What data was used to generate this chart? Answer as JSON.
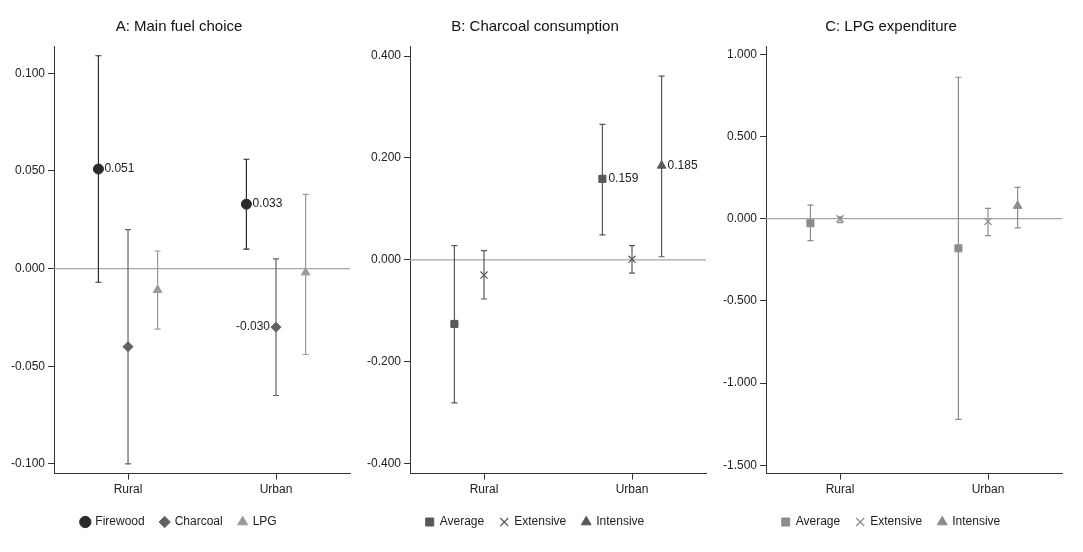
{
  "chart_data": [
    {
      "type": "scatter",
      "title": "A: Main fuel choice",
      "categories": [
        "Rural",
        "Urban"
      ],
      "ylim": [
        -0.105,
        0.114
      ],
      "yticks": [
        {
          "value": 0.1,
          "label": "0.100"
        },
        {
          "value": 0.05,
          "label": "0.050"
        },
        {
          "value": 0,
          "label": "0.000"
        },
        {
          "value": -0.05,
          "label": "-0.050"
        },
        {
          "value": -0.1,
          "label": "-0.100"
        }
      ],
      "legend": "bottom",
      "ref_lines": [
        {
          "axis": "y",
          "value": 0,
          "color": "#a6a6a6"
        }
      ],
      "series": [
        {
          "name": "Firewood",
          "color": "#2b2b2b",
          "marker": "circle",
          "values": [
            0.051,
            0.033
          ],
          "errors": [
            [
              -0.007,
              0.109
            ],
            [
              0.01,
              0.056
            ]
          ],
          "value_labels": [
            "0.051",
            "0.033"
          ]
        },
        {
          "name": "Charcoal",
          "color": "#626262",
          "marker": "diamond",
          "values": [
            -0.04,
            -0.03
          ],
          "errors": [
            [
              -0.1,
              0.02
            ],
            [
              -0.065,
              0.005
            ]
          ],
          "value_labels": [
            null,
            "-0.030"
          ]
        },
        {
          "name": "LPG",
          "color": "#9a9a9a",
          "marker": "triangle",
          "values": [
            -0.011,
            -0.002
          ],
          "errors": [
            [
              -0.031,
              0.009
            ],
            [
              -0.044,
              0.038
            ]
          ]
        }
      ]
    },
    {
      "type": "scatter",
      "title": "B: Charcoal consumption",
      "categories": [
        "Rural",
        "Urban"
      ],
      "ylim": [
        -0.42,
        0.42
      ],
      "yticks": [
        {
          "value": 0.4,
          "label": "0.400"
        },
        {
          "value": 0.2,
          "label": "0.200"
        },
        {
          "value": 0,
          "label": "0.000"
        },
        {
          "value": -0.2,
          "label": "-0.200"
        },
        {
          "value": -0.4,
          "label": "-0.400"
        }
      ],
      "legend": "bottom",
      "ref_lines": [
        {
          "axis": "y",
          "value": 0,
          "color": "#a6a6a6"
        }
      ],
      "series": [
        {
          "name": "Average",
          "color": "#595959",
          "marker": "square",
          "values": [
            -0.126,
            0.159
          ],
          "errors": [
            [
              -0.281,
              0.028
            ],
            [
              0.049,
              0.266
            ]
          ],
          "value_labels": [
            null,
            "0.159"
          ]
        },
        {
          "name": "Extensive",
          "color": "#595959",
          "marker": "cross",
          "values": [
            -0.03,
            0.001
          ],
          "errors": [
            [
              -0.077,
              0.018
            ],
            [
              -0.026,
              0.028
            ]
          ]
        },
        {
          "name": "Intensive",
          "color": "#595959",
          "marker": "triangle",
          "values": [
            null,
            0.185
          ],
          "errors": [
            null,
            [
              0.006,
              0.361
            ]
          ],
          "value_labels": [
            null,
            "0.185"
          ]
        }
      ]
    },
    {
      "type": "scatter",
      "title": "C: LPG expenditure",
      "categories": [
        "Rural",
        "Urban"
      ],
      "ylim": [
        -1.55,
        1.05
      ],
      "yticks": [
        {
          "value": 1,
          "label": "1.000"
        },
        {
          "value": 0.5,
          "label": "0.500"
        },
        {
          "value": 0,
          "label": "0.000"
        },
        {
          "value": -0.5,
          "label": "-0.500"
        },
        {
          "value": -1,
          "label": "-1.000"
        },
        {
          "value": -1.5,
          "label": "-1.500"
        }
      ],
      "legend": "bottom",
      "ref_lines": [
        {
          "axis": "y",
          "value": 0,
          "color": "#a6a6a6"
        }
      ],
      "series": [
        {
          "name": "Average",
          "color": "#8c8c8c",
          "marker": "square",
          "values": [
            -0.028,
            -0.18
          ],
          "errors": [
            [
              -0.134,
              0.082
            ],
            [
              -1.22,
              0.86
            ]
          ]
        },
        {
          "name": "Extensive",
          "color": "#8c8c8c",
          "marker": "cross",
          "values": [
            0.0,
            -0.017
          ],
          "errors": [
            [
              -0.024,
              0.011
            ],
            [
              -0.103,
              0.063
            ]
          ]
        },
        {
          "name": "Intensive",
          "color": "#8c8c8c",
          "marker": "triangle",
          "values": [
            null,
            0.078
          ],
          "errors": [
            null,
            [
              -0.056,
              0.19
            ]
          ]
        }
      ]
    }
  ]
}
